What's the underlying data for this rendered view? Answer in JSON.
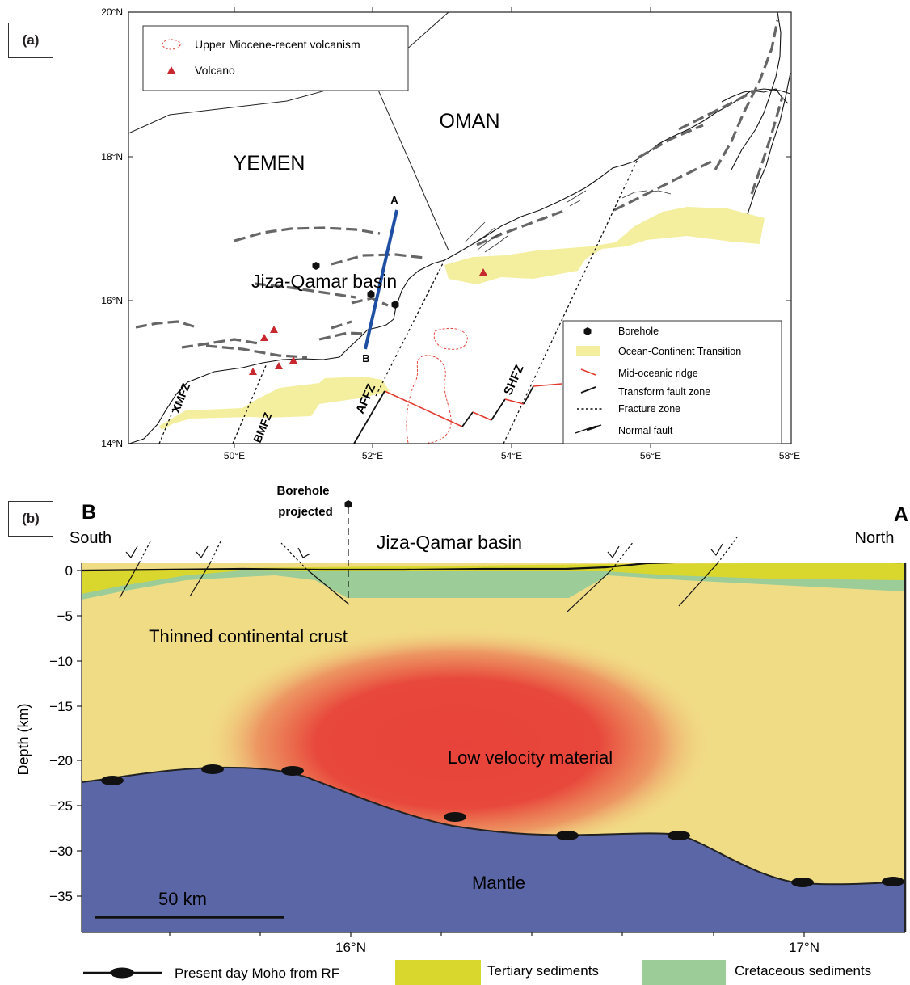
{
  "panel_a": {
    "tag": "(a)",
    "lat_labels": [
      "20°N",
      "18°N",
      "16°N",
      "14°N"
    ],
    "lon_labels": [
      "50°E",
      "52°E",
      "54°E",
      "56°E",
      "58°E"
    ],
    "country_labels": {
      "oman": "OMAN",
      "yemen": "YEMEN"
    },
    "basin_label": "Jiza-Qamar basin",
    "profile_endpoints": {
      "a": "A",
      "b": "B"
    },
    "fault_zones": [
      "XMFZ",
      "BMFZ",
      "AFFZ",
      "SHFZ"
    ],
    "legend_top": {
      "volcanism": "Upper Miocene-recent volcanism",
      "volcano": "Volcano"
    },
    "legend_bottom": {
      "borehole": "Borehole",
      "oct": "Ocean-Continent Transition",
      "ridge": "Mid-oceanic ridge",
      "transform": "Transform fault zone",
      "fracture": "Fracture zone",
      "normal_fault": "Normal fault"
    },
    "colors": {
      "oct_fill": "#f3ef9f",
      "ridge": "#e23a2f",
      "profile": "#1f4fa3",
      "volcano": "#c8282d"
    }
  },
  "panel_b": {
    "tag": "(b)",
    "end_b": "B",
    "end_a": "A",
    "south_label": "South",
    "north_label": "North",
    "borehole_label_1": "Borehole",
    "borehole_label_2": "projected",
    "basin_label": "Jiza-Qamar basin",
    "crust_label": "Thinned continental crust",
    "lvz_label": "Low velocity material",
    "mantle_label": "Mantle",
    "scale_label": "50 km",
    "y_axis_label": "Depth (km)",
    "depth_ticks": [
      "0",
      "−5",
      "−10",
      "−15",
      "−20",
      "−25",
      "−30",
      "−35"
    ],
    "lat_ticks": [
      "16°N",
      "17°N"
    ],
    "legend": {
      "moho": "Present day Moho from RF",
      "tertiary": "Tertiary sediments",
      "cretaceous": "Cretaceous sediments"
    },
    "colors": {
      "crust": "#f1dc86",
      "mantle": "#5a66a6",
      "tertiary": "#d9d72d",
      "cretaceous": "#9ccd98",
      "lvz": "#e8433a"
    }
  }
}
